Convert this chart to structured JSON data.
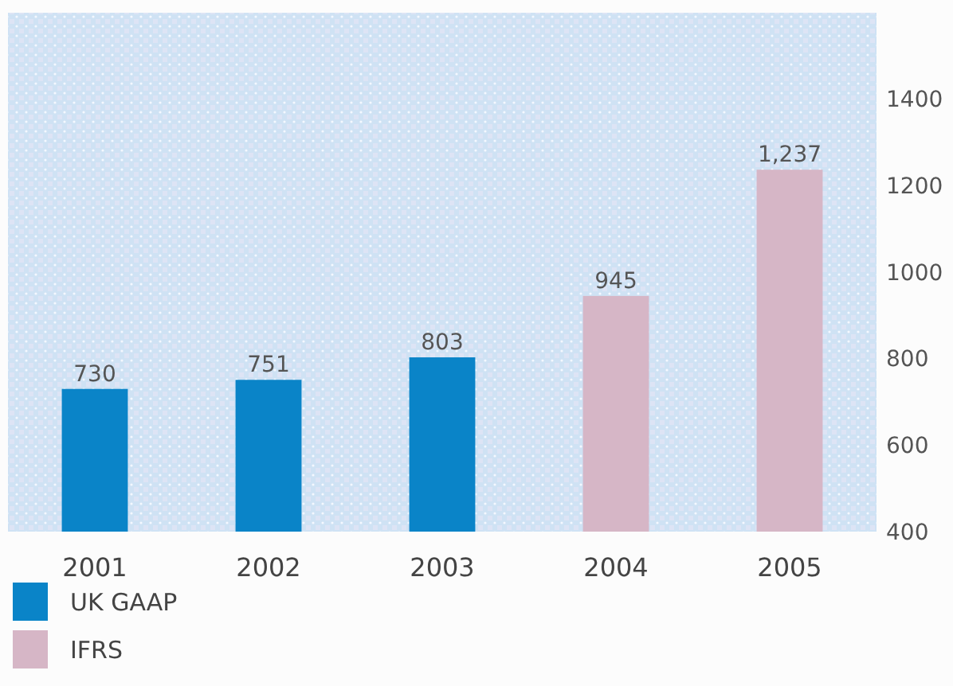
{
  "chart_data": {
    "type": "bar",
    "categories": [
      "2001",
      "2002",
      "2003",
      "2004",
      "2005"
    ],
    "series": [
      {
        "name": "UK GAAP",
        "color": "#0a84c8",
        "values": [
          730,
          751,
          803,
          null,
          null
        ],
        "value_labels": [
          "730",
          "751",
          "803",
          null,
          null
        ]
      },
      {
        "name": "IFRS",
        "color": "#d6b6c6",
        "values": [
          null,
          null,
          null,
          945,
          1237
        ],
        "value_labels": [
          null,
          null,
          null,
          "945",
          "1,237"
        ]
      }
    ],
    "ylim": [
      400,
      1600
    ],
    "yticks": [
      400,
      600,
      800,
      1000,
      1200,
      1400
    ],
    "legend": "bottom left",
    "grid": false
  }
}
